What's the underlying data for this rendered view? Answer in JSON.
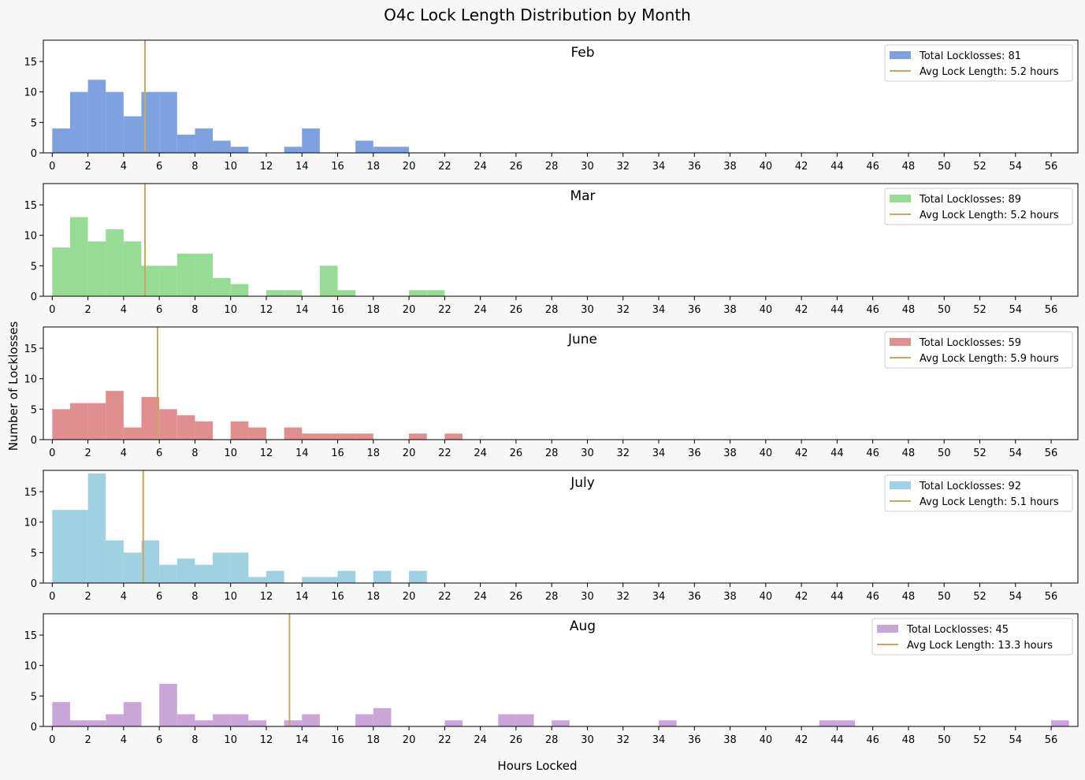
{
  "chart_data": {
    "type": "bar",
    "title": "O4c Lock Length Distribution by Month",
    "xlabel": "Hours Locked",
    "ylabel": "Number of Locklosses",
    "xlim": [
      -0.5,
      57.5
    ],
    "ylim": [
      0,
      18.5
    ],
    "bin_width": 1,
    "xticks": [
      0,
      2,
      4,
      6,
      8,
      10,
      12,
      14,
      16,
      18,
      20,
      22,
      24,
      26,
      28,
      30,
      32,
      34,
      36,
      38,
      40,
      42,
      44,
      46,
      48,
      50,
      52,
      54,
      56
    ],
    "yticks": [
      0,
      5,
      10,
      15
    ],
    "legend_position": "top-right",
    "grid": false,
    "panels": [
      {
        "month": "Feb",
        "color": "#7ea1df",
        "total_label": "Total Locklosses: 81",
        "avg_label": "Avg Lock Length: 5.2 hours",
        "avg_value": 5.2,
        "avg_color": "#c4aa60",
        "counts": [
          4,
          10,
          12,
          10,
          6,
          10,
          10,
          3,
          4,
          2,
          1,
          0,
          0,
          1,
          4,
          0,
          0,
          2,
          1,
          1
        ]
      },
      {
        "month": "Mar",
        "color": "#96dc94",
        "total_label": "Total Locklosses: 89",
        "avg_label": "Avg Lock Length: 5.2 hours",
        "avg_value": 5.2,
        "avg_color": "#c4aa60",
        "counts": [
          8,
          13,
          9,
          11,
          9,
          5,
          5,
          7,
          7,
          3,
          2,
          0,
          1,
          1,
          0,
          5,
          1,
          0,
          0,
          0,
          1,
          1
        ]
      },
      {
        "month": "June",
        "color": "#e18e8e",
        "total_label": "Total Locklosses: 59",
        "avg_label": "Avg Lock Length: 5.9 hours",
        "avg_value": 5.9,
        "avg_color": "#c4aa60",
        "counts": [
          5,
          6,
          6,
          8,
          2,
          7,
          5,
          4,
          3,
          0,
          3,
          2,
          0,
          2,
          1,
          1,
          1,
          1,
          0,
          0,
          1,
          0,
          1
        ]
      },
      {
        "month": "July",
        "color": "#9fd1e3",
        "total_label": "Total Locklosses: 92",
        "avg_label": "Avg Lock Length: 5.1 hours",
        "avg_value": 5.1,
        "avg_color": "#c4aa60",
        "counts": [
          12,
          12,
          18,
          7,
          5,
          7,
          3,
          4,
          3,
          5,
          5,
          1,
          2,
          0,
          1,
          1,
          2,
          0,
          2,
          0,
          2
        ]
      },
      {
        "month": "Aug",
        "color": "#caa6d8",
        "total_label": "Total Locklosses: 45",
        "avg_label": "Avg Lock Length: 13.3 hours",
        "avg_value": 13.3,
        "avg_color": "#c4aa60",
        "counts": [
          4,
          1,
          1,
          2,
          4,
          0,
          7,
          2,
          1,
          2,
          2,
          1,
          0,
          1,
          2,
          0,
          0,
          2,
          3,
          0,
          0,
          0,
          1,
          0,
          0,
          2,
          2,
          0,
          1,
          0,
          0,
          0,
          0,
          0,
          1,
          0,
          0,
          0,
          0,
          0,
          0,
          0,
          0,
          1,
          1,
          0,
          0,
          0,
          0,
          0,
          0,
          0,
          0,
          0,
          0,
          0,
          1
        ]
      }
    ]
  }
}
